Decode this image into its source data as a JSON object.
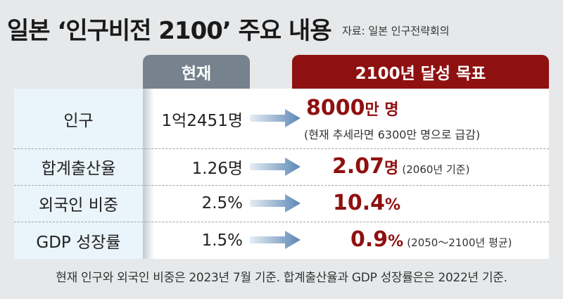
{
  "title": "일본 ‘인구비전 2100’ 주요 내용",
  "source": "자료: 일본 인구전략회의",
  "headers": {
    "current": "현재",
    "goal": "2100년 달성 목표"
  },
  "rows": [
    {
      "label": "인구",
      "current": "1억2451명",
      "goal_value": "8000",
      "goal_unit": "만 명",
      "goal_note": "(현재 추세라면 6300만 명으로 급감)"
    },
    {
      "label": "합계출산율",
      "current": "1.26명",
      "goal_value": "2.07",
      "goal_unit": "명",
      "goal_note": "(2060년 기준)"
    },
    {
      "label": "외국인 비중",
      "current": "2.5%",
      "goal_value": "10.4",
      "goal_unit": "%",
      "goal_note": ""
    },
    {
      "label": "GDP 성장률",
      "current": "1.5%",
      "goal_value": "0.9",
      "goal_unit": "%",
      "goal_note": "(2050～2100년 평균)"
    }
  ],
  "footnote": "현재 인구와 외국인 비중은 2023년 7월 기준. 합계출산율과 GDP 성장률은은 2022년 기준.",
  "colors": {
    "accent_red": "#8f1010",
    "header_gray": "#76828e",
    "arrow_blue": "#5b86b5",
    "label_col_bg": "#eaf4fb"
  }
}
